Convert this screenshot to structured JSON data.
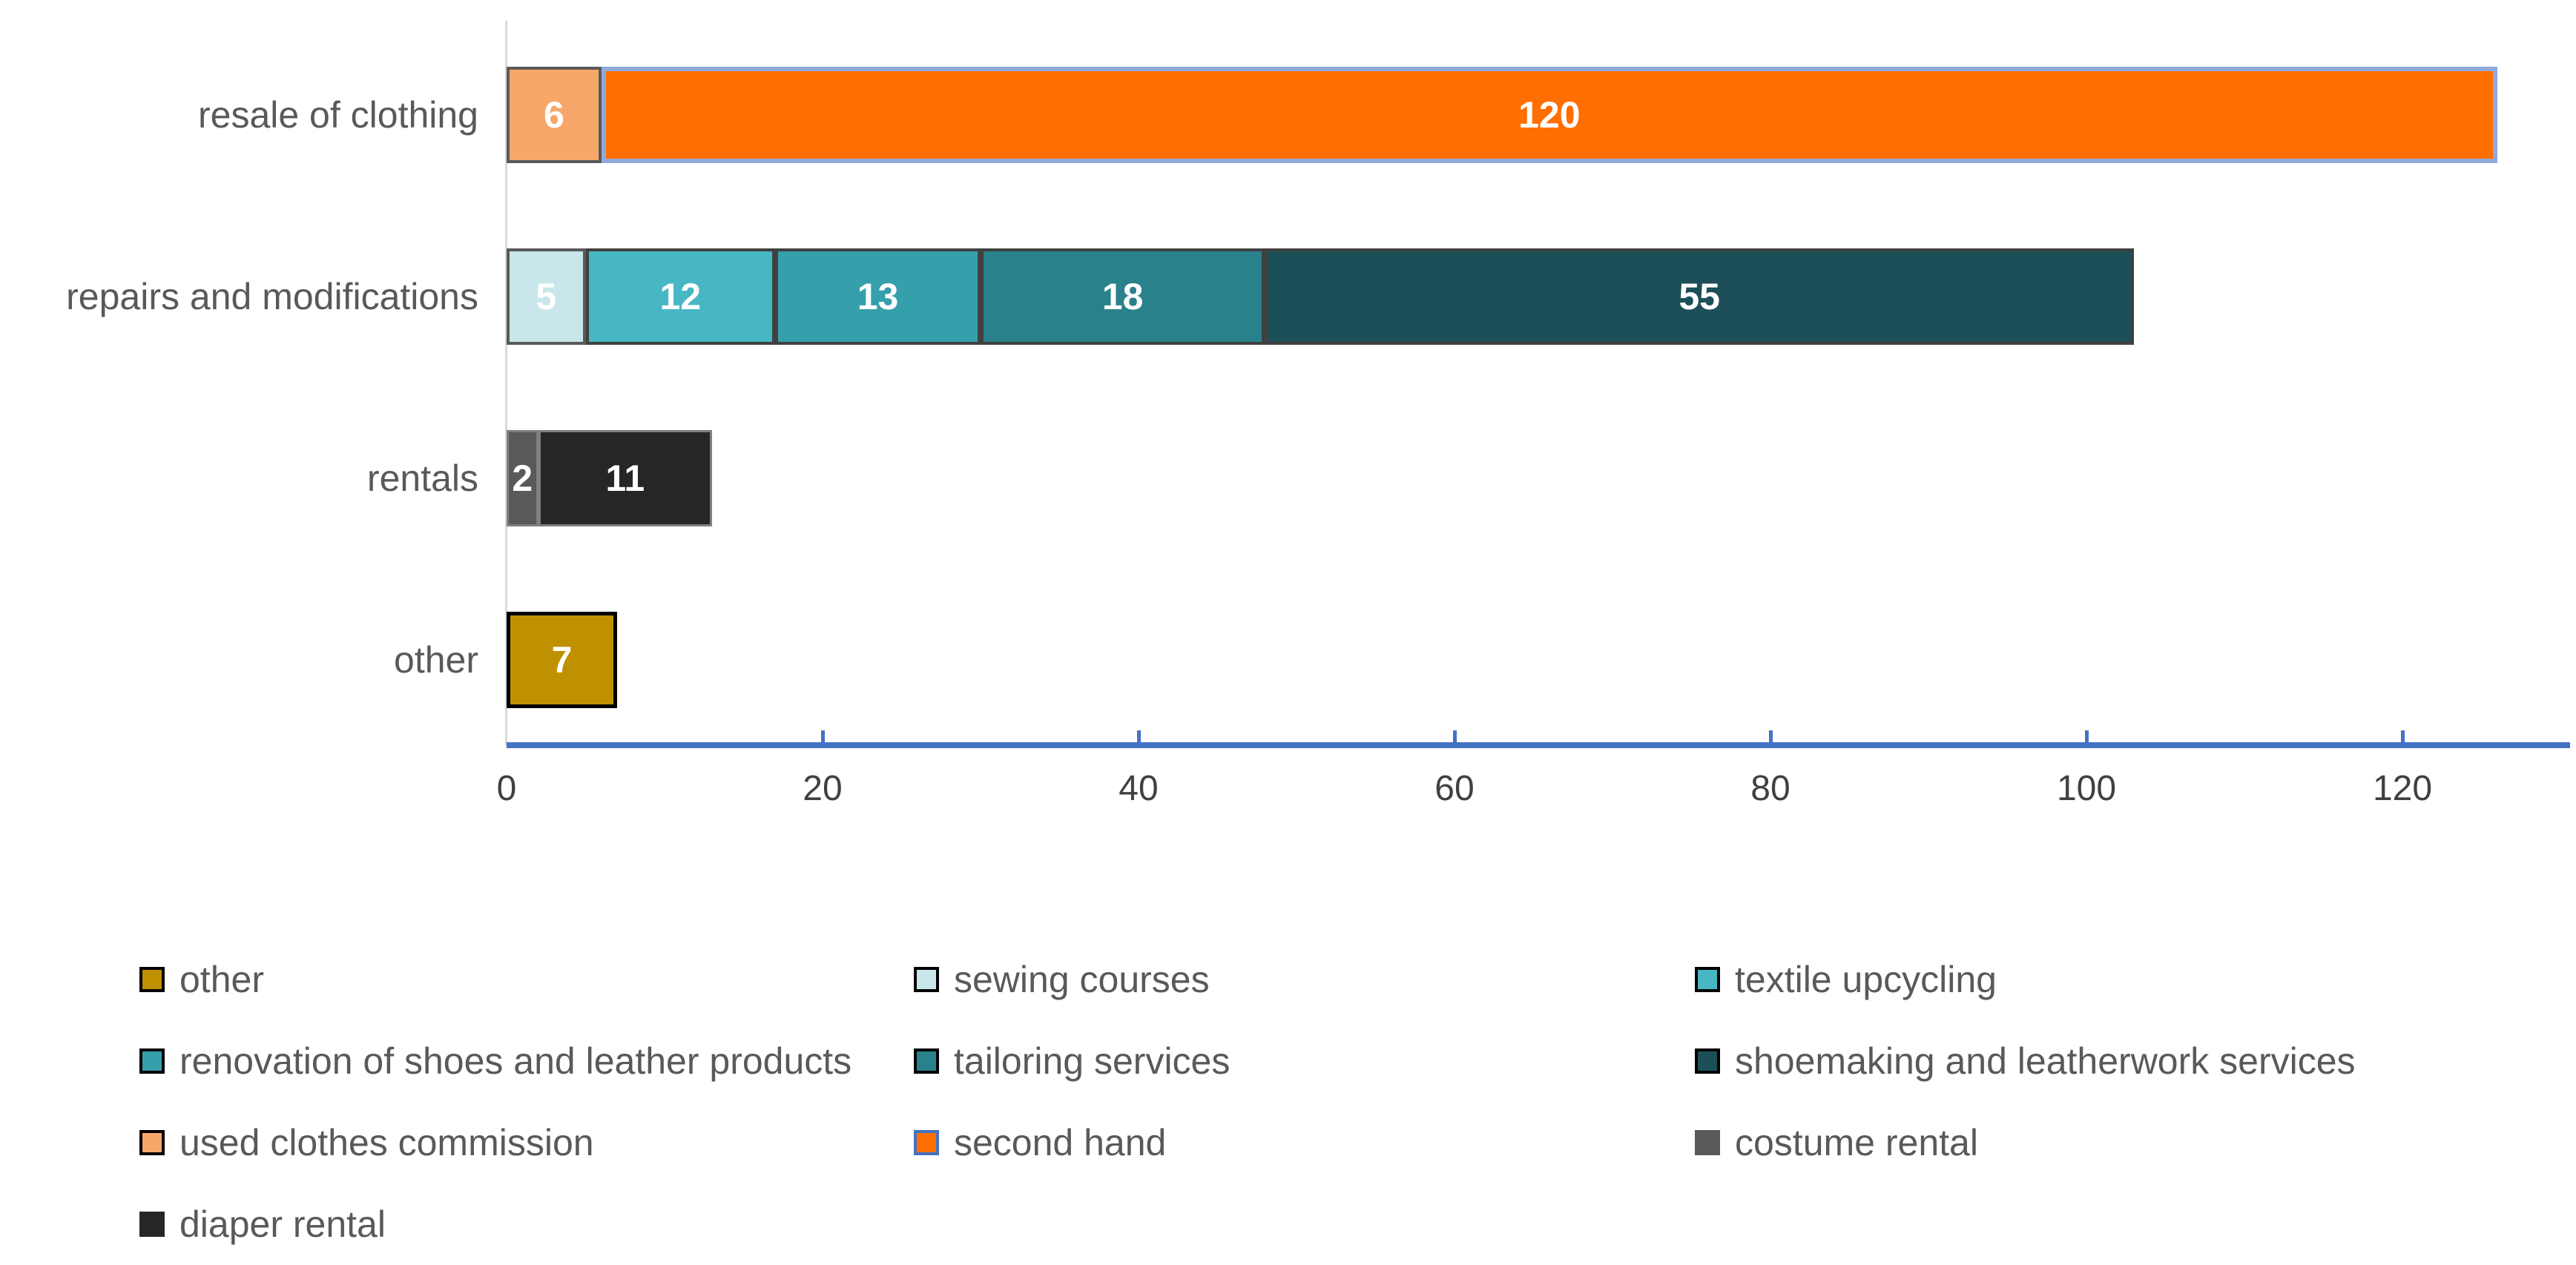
{
  "chart_data": {
    "type": "bar",
    "orientation": "horizontal",
    "stacked": true,
    "title": "",
    "xlabel": "",
    "ylabel": "",
    "categories": [
      "resale of clothing",
      "repairs and modifications",
      "rentals",
      "other"
    ],
    "series": [
      {
        "name": "other",
        "color": "#BF9000",
        "border_color": "#000000",
        "border_width": 5,
        "swatch_border": "#000000",
        "values": [
          0,
          0,
          0,
          7
        ]
      },
      {
        "name": "sewing courses",
        "color": "#C9E7EB",
        "border_color": "#595959",
        "border_width": 4,
        "swatch_border": "#000000",
        "values": [
          0,
          5,
          0,
          0
        ]
      },
      {
        "name": "textile upcycling",
        "color": "#47B7C4",
        "border_color": "#404040",
        "border_width": 4,
        "swatch_border": "#000000",
        "values": [
          0,
          12,
          0,
          0
        ]
      },
      {
        "name": "renovation of shoes and leather products",
        "color": "#35A0AB",
        "border_color": "#404040",
        "border_width": 4,
        "swatch_border": "#000000",
        "values": [
          0,
          13,
          0,
          0
        ]
      },
      {
        "name": "tailoring services",
        "color": "#29818B",
        "border_color": "#404040",
        "border_width": 4,
        "swatch_border": "#000000",
        "values": [
          0,
          18,
          0,
          0
        ]
      },
      {
        "name": "shoemaking and leatherwork services",
        "color": "#1D4F58",
        "border_color": "#404040",
        "border_width": 4,
        "swatch_border": "#000000",
        "values": [
          0,
          55,
          0,
          0
        ]
      },
      {
        "name": "used clothes commission",
        "color": "#F8A76A",
        "border_color": "#595959",
        "border_width": 4,
        "swatch_border": "#000000",
        "values": [
          6,
          0,
          0,
          0
        ]
      },
      {
        "name": "second hand",
        "color": "#FF6E01",
        "border_color": "#8FAADC",
        "border_width": 6,
        "swatch_border": "#4472C4",
        "values": [
          120,
          0,
          0,
          0
        ]
      },
      {
        "name": "costume rental",
        "color": "#595959",
        "border_color": "#7F7F7F",
        "border_width": 3,
        "swatch_border": "#595959",
        "values": [
          0,
          0,
          2,
          0
        ]
      },
      {
        "name": "diaper rental",
        "color": "#262626",
        "border_color": "#7F7F7F",
        "border_width": 3,
        "swatch_border": "#262626",
        "values": [
          0,
          0,
          11,
          0
        ]
      }
    ],
    "x_ticks": [
      "0",
      "20",
      "40",
      "60",
      "80",
      "100",
      "120"
    ],
    "xlim": [
      0,
      130
    ],
    "grid": false,
    "legend_position": "bottom",
    "legend_columns": 3,
    "axis_color": "#4472C4",
    "gridline_axis_color": "#D9D9D9",
    "tick_label_color": "#404040",
    "category_label_color": "#595959",
    "value_label_color": "#FFFFFF"
  }
}
